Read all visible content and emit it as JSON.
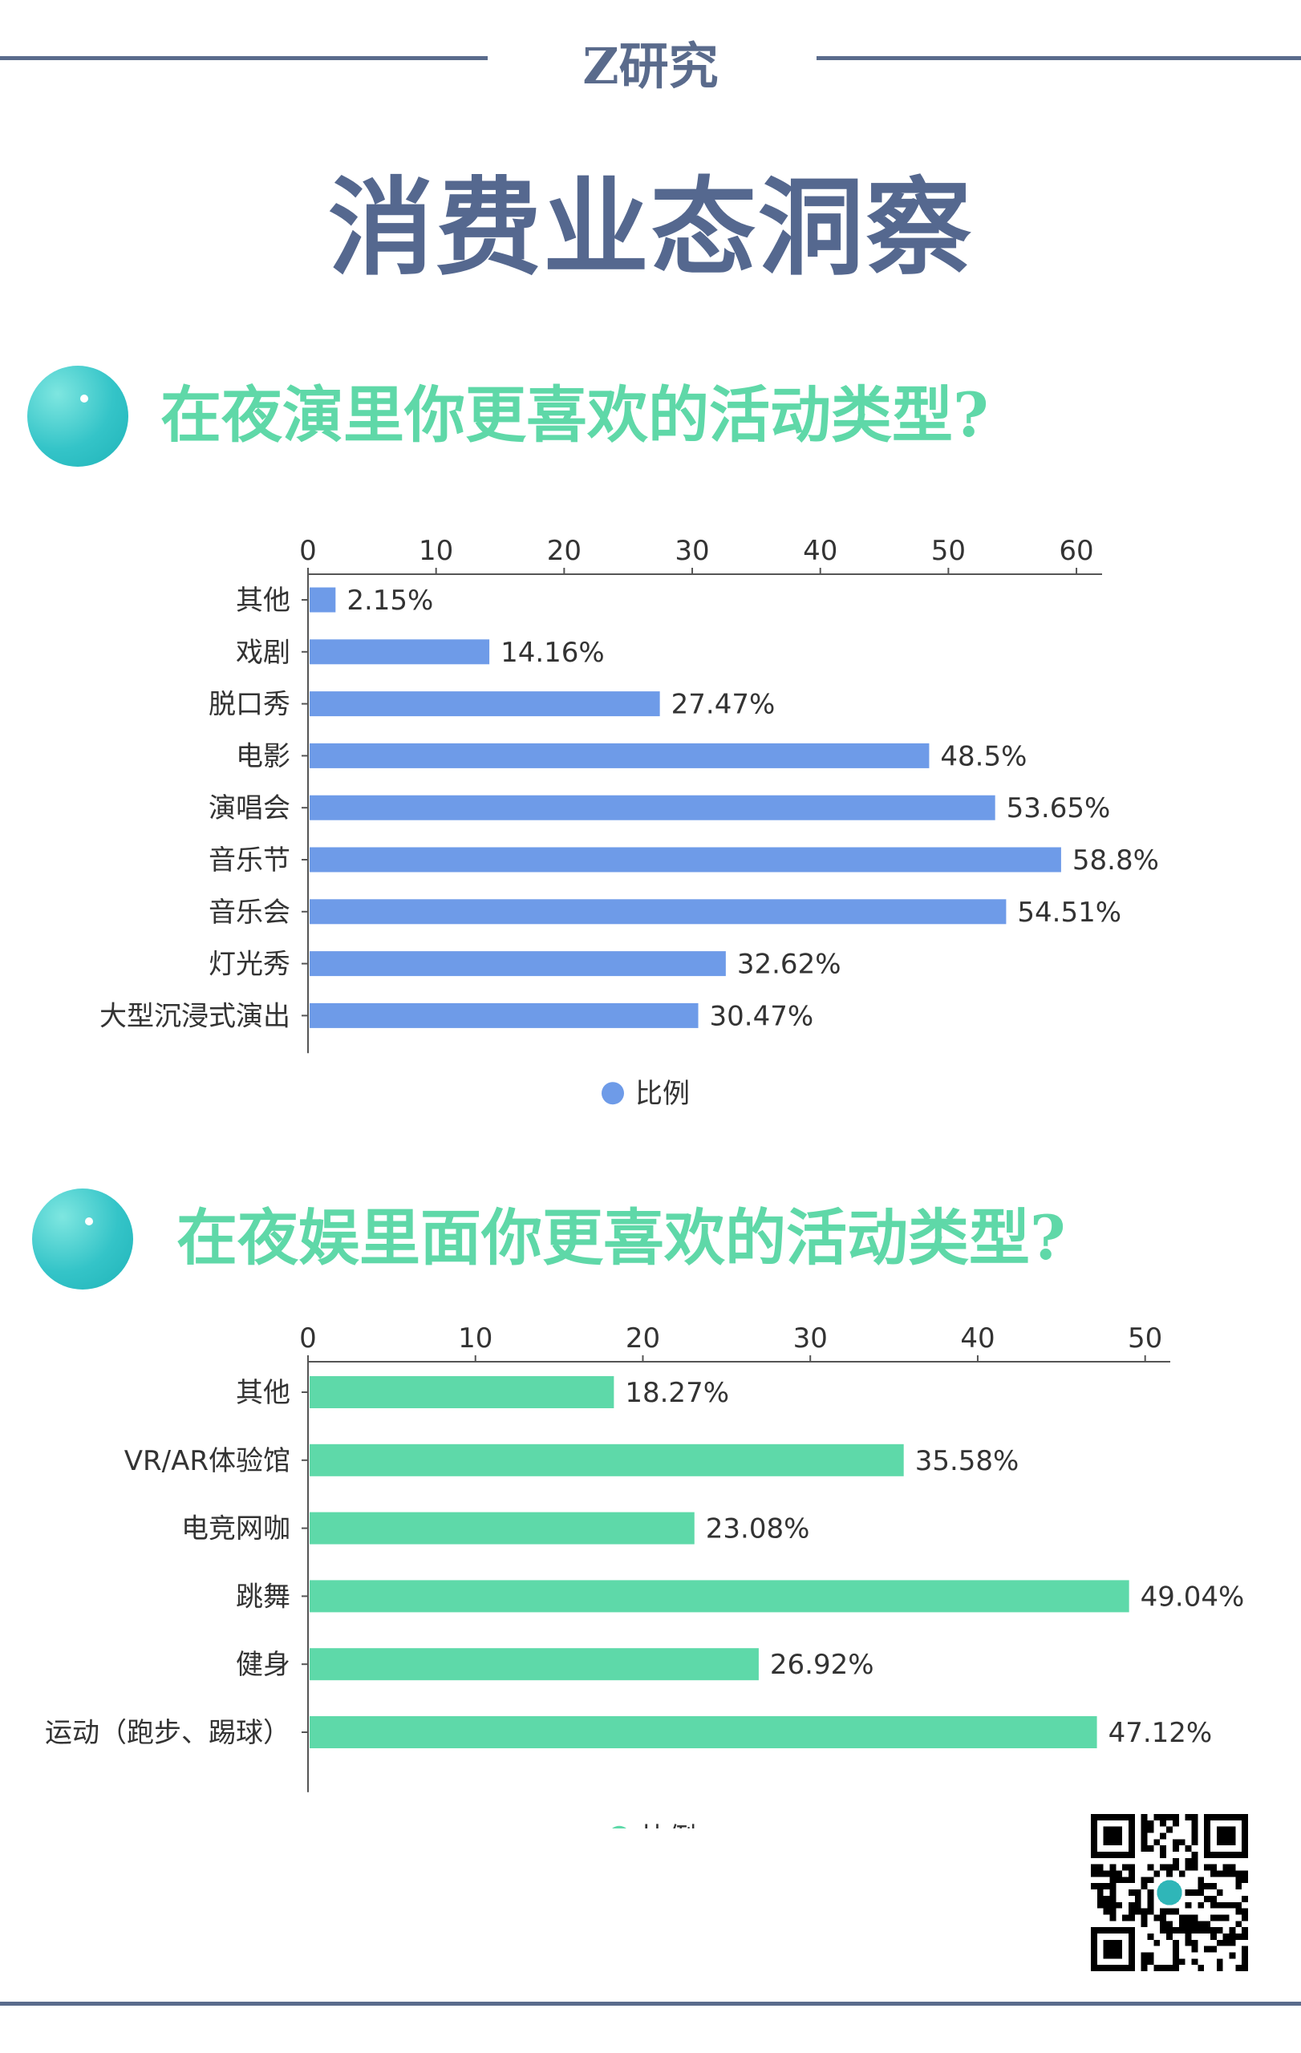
{
  "header": {
    "brand": "Z研究",
    "title": "消费业态洞察"
  },
  "colors": {
    "rule": "#5a6b8c",
    "title": "#55688f",
    "question": "#5fd8a8",
    "bar1": "#6e9be8",
    "bar2": "#5ed9a9"
  },
  "sections": [
    {
      "question": "在夜演里你更喜欢的活动类型?",
      "icon": "teal-orb-icon"
    },
    {
      "question": "在夜娱里面你更喜欢的活动类型?",
      "icon": "teal-orb-icon"
    }
  ],
  "chart_data": [
    {
      "type": "bar",
      "orientation": "horizontal",
      "categories": [
        "其他",
        "戏剧",
        "脱口秀",
        "电影",
        "演唱会",
        "音乐节",
        "音乐会",
        "灯光秀",
        "大型沉浸式演出"
      ],
      "values": [
        2.15,
        14.16,
        27.47,
        48.5,
        53.65,
        58.8,
        54.51,
        32.62,
        30.47
      ],
      "labels": [
        "2.15%",
        "14.16%",
        "27.47%",
        "48.5%",
        "53.65%",
        "58.8%",
        "54.51%",
        "32.62%",
        "30.47%"
      ],
      "ticks": [
        0,
        10,
        20,
        30,
        40,
        50,
        60
      ],
      "xlim": [
        0,
        62
      ],
      "axis_position": "top",
      "legend": "比例",
      "legend_position": "bottom-center",
      "grid": false
    },
    {
      "type": "bar",
      "orientation": "horizontal",
      "categories": [
        "其他",
        "VR/AR体验馆",
        "电竞网咖",
        "跳舞",
        "健身",
        "运动（跑步、踢球）"
      ],
      "values": [
        18.27,
        35.58,
        23.08,
        49.04,
        26.92,
        47.12
      ],
      "labels": [
        "18.27%",
        "35.58%",
        "23.08%",
        "49.04%",
        "26.92%",
        "47.12%"
      ],
      "ticks": [
        0,
        10,
        20,
        30,
        40,
        50
      ],
      "xlim": [
        0,
        51.5
      ],
      "axis_position": "top",
      "legend": "比例",
      "legend_position": "bottom-center",
      "grid": false
    }
  ]
}
